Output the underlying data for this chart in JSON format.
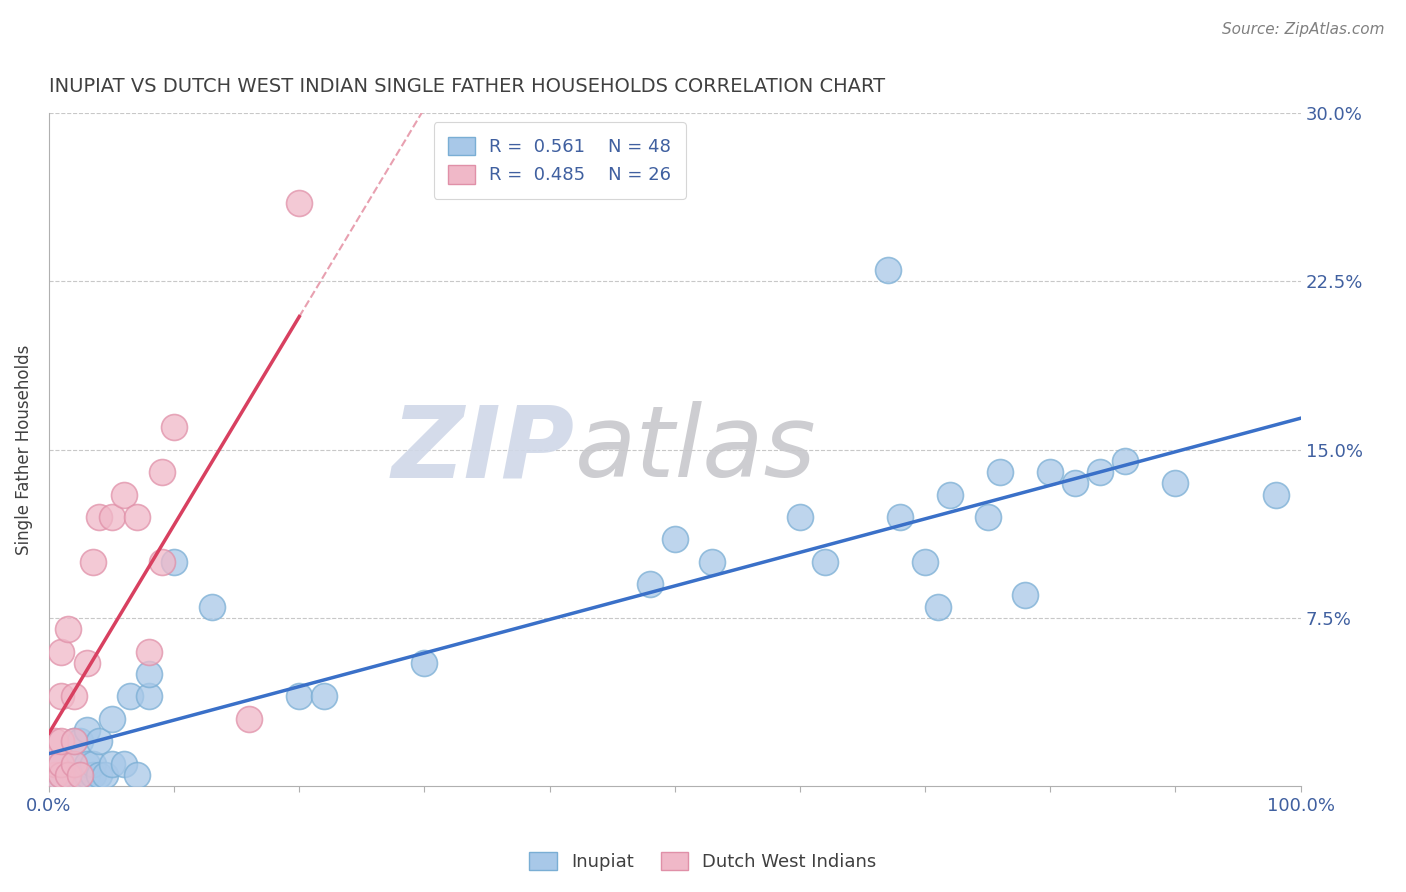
{
  "title": "INUPIAT VS DUTCH WEST INDIAN SINGLE FATHER HOUSEHOLDS CORRELATION CHART",
  "source_text": "Source: ZipAtlas.com",
  "ylabel": "Single Father Households",
  "xlim": [
    0,
    1.0
  ],
  "ylim": [
    0,
    0.3
  ],
  "ytick_labels": [
    "7.5%",
    "15.0%",
    "22.5%",
    "30.0%"
  ],
  "ytick_values": [
    0.075,
    0.15,
    0.225,
    0.3
  ],
  "legend_R_blue": "0.561",
  "legend_N_blue": "48",
  "legend_R_pink": "0.485",
  "legend_N_pink": "26",
  "blue_marker_color": "#a8c8e8",
  "blue_marker_edge": "#7aaed4",
  "pink_marker_color": "#f0b8c8",
  "pink_marker_edge": "#e090a8",
  "blue_line_color": "#3a70c8",
  "pink_line_color": "#d84060",
  "pink_dash_color": "#e8a0b0",
  "title_color": "#404040",
  "source_color": "#808080",
  "ylabel_color": "#404040",
  "tick_color": "#4060a0",
  "grid_color": "#c8c8c8",
  "watermark_zip_color": "#d0d8e8",
  "watermark_atlas_color": "#c8c8cc",
  "inupiat_x": [
    0.005,
    0.01,
    0.01,
    0.015,
    0.02,
    0.02,
    0.02,
    0.025,
    0.025,
    0.03,
    0.03,
    0.03,
    0.035,
    0.035,
    0.04,
    0.04,
    0.045,
    0.05,
    0.05,
    0.06,
    0.065,
    0.07,
    0.08,
    0.08,
    0.1,
    0.13,
    0.2,
    0.22,
    0.3,
    0.48,
    0.5,
    0.53,
    0.6,
    0.62,
    0.67,
    0.68,
    0.7,
    0.71,
    0.72,
    0.75,
    0.76,
    0.78,
    0.8,
    0.82,
    0.84,
    0.86,
    0.9,
    0.98
  ],
  "inupiat_y": [
    0.005,
    0.005,
    0.01,
    0.005,
    0.005,
    0.01,
    0.02,
    0.005,
    0.02,
    0.005,
    0.01,
    0.025,
    0.005,
    0.01,
    0.005,
    0.02,
    0.005,
    0.01,
    0.03,
    0.01,
    0.04,
    0.005,
    0.04,
    0.05,
    0.1,
    0.08,
    0.04,
    0.04,
    0.055,
    0.09,
    0.11,
    0.1,
    0.12,
    0.1,
    0.23,
    0.12,
    0.1,
    0.08,
    0.13,
    0.12,
    0.14,
    0.085,
    0.14,
    0.135,
    0.14,
    0.145,
    0.135,
    0.13
  ],
  "dutch_x": [
    0.005,
    0.005,
    0.005,
    0.01,
    0.01,
    0.01,
    0.01,
    0.01,
    0.015,
    0.015,
    0.02,
    0.02,
    0.02,
    0.025,
    0.03,
    0.035,
    0.04,
    0.05,
    0.06,
    0.07,
    0.08,
    0.09,
    0.09,
    0.1,
    0.16,
    0.2
  ],
  "dutch_y": [
    0.005,
    0.01,
    0.02,
    0.005,
    0.01,
    0.02,
    0.04,
    0.06,
    0.005,
    0.07,
    0.01,
    0.02,
    0.04,
    0.005,
    0.055,
    0.1,
    0.12,
    0.12,
    0.13,
    0.12,
    0.06,
    0.1,
    0.14,
    0.16,
    0.03,
    0.26
  ]
}
